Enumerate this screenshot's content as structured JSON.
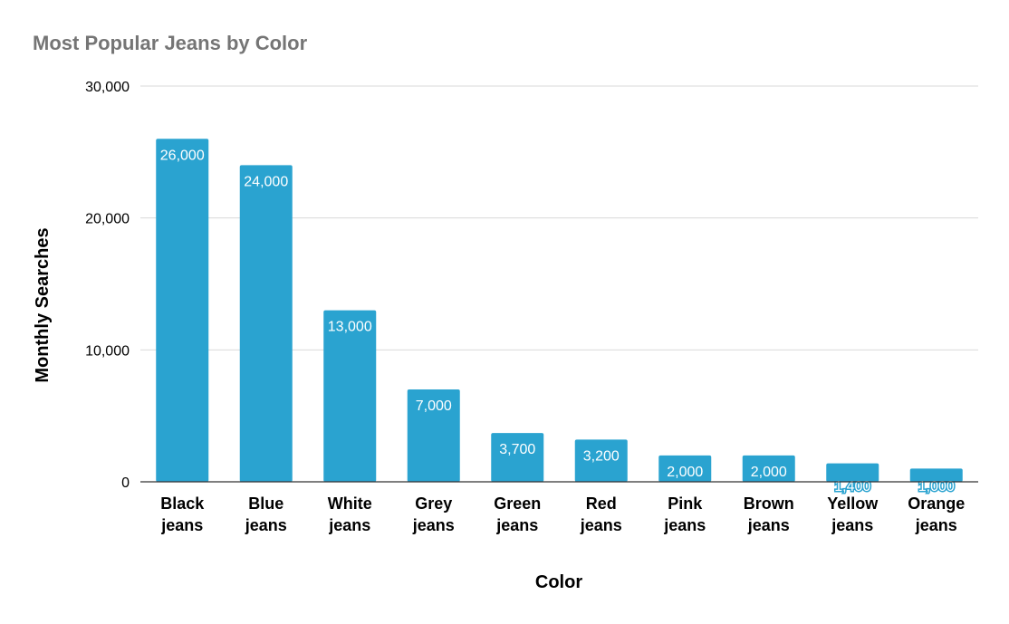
{
  "chart_data": {
    "type": "bar",
    "title": "Most Popular Jeans by Color",
    "xlabel": "Color",
    "ylabel": "Monthly Searches",
    "categories": [
      [
        "Black",
        "jeans"
      ],
      [
        "Blue",
        "jeans"
      ],
      [
        "White",
        "jeans"
      ],
      [
        "Grey",
        "jeans"
      ],
      [
        "Green",
        "jeans"
      ],
      [
        "Red",
        "jeans"
      ],
      [
        "Pink",
        "jeans"
      ],
      [
        "Brown",
        "jeans"
      ],
      [
        "Yellow",
        "jeans"
      ],
      [
        "Orange",
        "jeans"
      ]
    ],
    "values": [
      26000,
      24000,
      13000,
      7000,
      3700,
      3200,
      2000,
      2000,
      1400,
      1000
    ],
    "value_labels": [
      "26,000",
      "24,000",
      "13,000",
      "7,000",
      "3,700",
      "3,200",
      "2,000",
      "2,000",
      "1,400",
      "1,000"
    ],
    "ylim": [
      0,
      30000
    ],
    "yticks": [
      0,
      10000,
      20000,
      30000
    ],
    "ytick_labels": [
      "0",
      "10,000",
      "20,000",
      "30,000"
    ],
    "grid": true,
    "legend": "none",
    "bar_color": "#2aa3d0",
    "title_color": "#757575",
    "grid_color": "#d9d9d9"
  }
}
